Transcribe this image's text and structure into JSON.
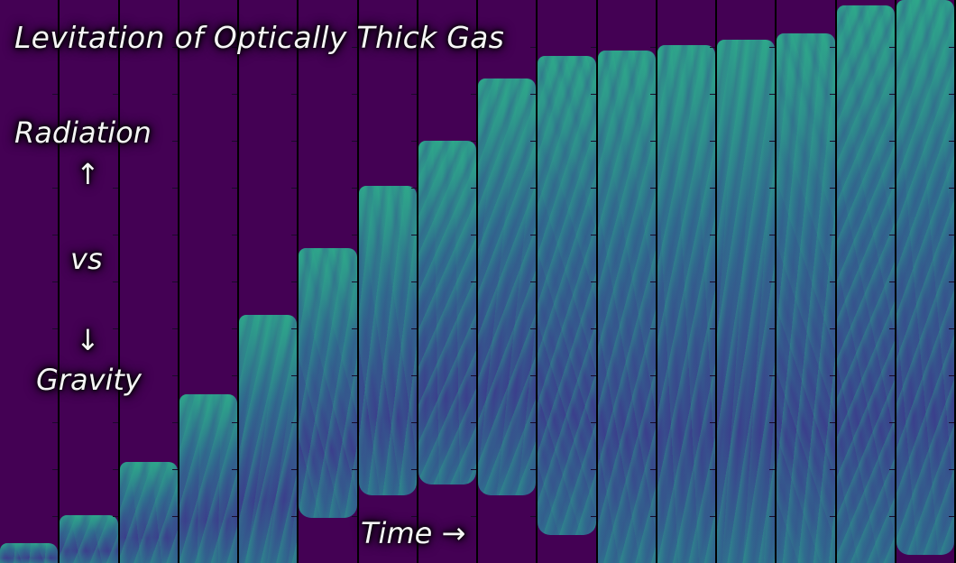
{
  "title": "Levitation of Optically Thick Gas",
  "labels": {
    "radiation": "Radiation",
    "up_arrow": "↑",
    "vs": "vs",
    "down_arrow": "↓",
    "gravity": "Gravity",
    "time": "Time →"
  },
  "colors": {
    "background": "#440154",
    "gas_light": "#2ea88a",
    "gas_mid": "#2f6f8e",
    "gas_dark": "#3b3f8c",
    "divider": "#000000"
  },
  "panels": {
    "count": 16,
    "gas_top_fraction": [
      0.965,
      0.915,
      0.82,
      0.7,
      0.56,
      0.44,
      0.33,
      0.25,
      0.14,
      0.1,
      0.09,
      0.08,
      0.07,
      0.06,
      0.01,
      0.0
    ],
    "gas_bottom_fraction": [
      1.0,
      1.0,
      1.0,
      1.0,
      1.0,
      0.92,
      0.88,
      0.86,
      0.88,
      0.95,
      1.0,
      1.0,
      1.0,
      1.0,
      1.0,
      0.985
    ]
  }
}
